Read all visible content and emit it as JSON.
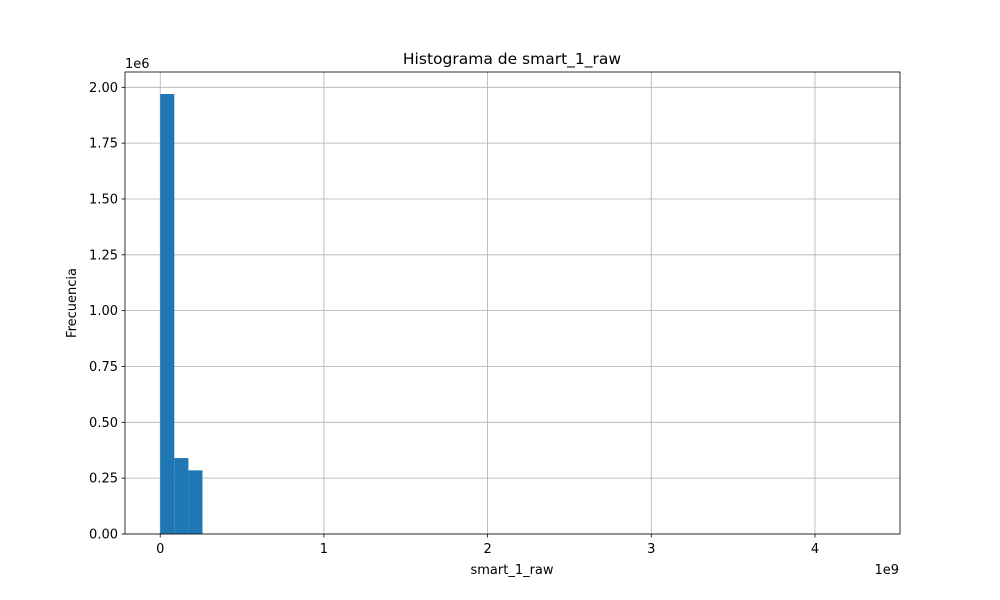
{
  "chart_data": {
    "type": "bar",
    "title": "Histograma de smart_1_raw",
    "xlabel": "smart_1_raw",
    "ylabel": "Frecuencia",
    "x_offset_label": "1e9",
    "y_offset_label": "1e6",
    "x_scale": 1000000000,
    "y_scale": 1000000,
    "xlim": [
      -0.2152,
      4.5194
    ],
    "ylim": [
      0,
      2.0685
    ],
    "x_ticks": [
      0,
      1,
      2,
      3,
      4
    ],
    "x_tick_labels": [
      "0",
      "1",
      "2",
      "3",
      "4"
    ],
    "y_ticks": [
      0,
      0.25,
      0.5,
      0.75,
      1.0,
      1.25,
      1.5,
      1.75,
      2.0
    ],
    "y_tick_labels": [
      "0.00",
      "0.25",
      "0.50",
      "0.75",
      "1.00",
      "1.25",
      "1.50",
      "1.75",
      "2.00"
    ],
    "grid": true,
    "bar_color": "#1f77b4",
    "bins": [
      {
        "x0": 0.0,
        "x1": 0.086,
        "value": 1.97
      },
      {
        "x0": 0.086,
        "x1": 0.172,
        "value": 0.34
      },
      {
        "x0": 0.172,
        "x1": 0.258,
        "value": 0.285
      }
    ]
  }
}
